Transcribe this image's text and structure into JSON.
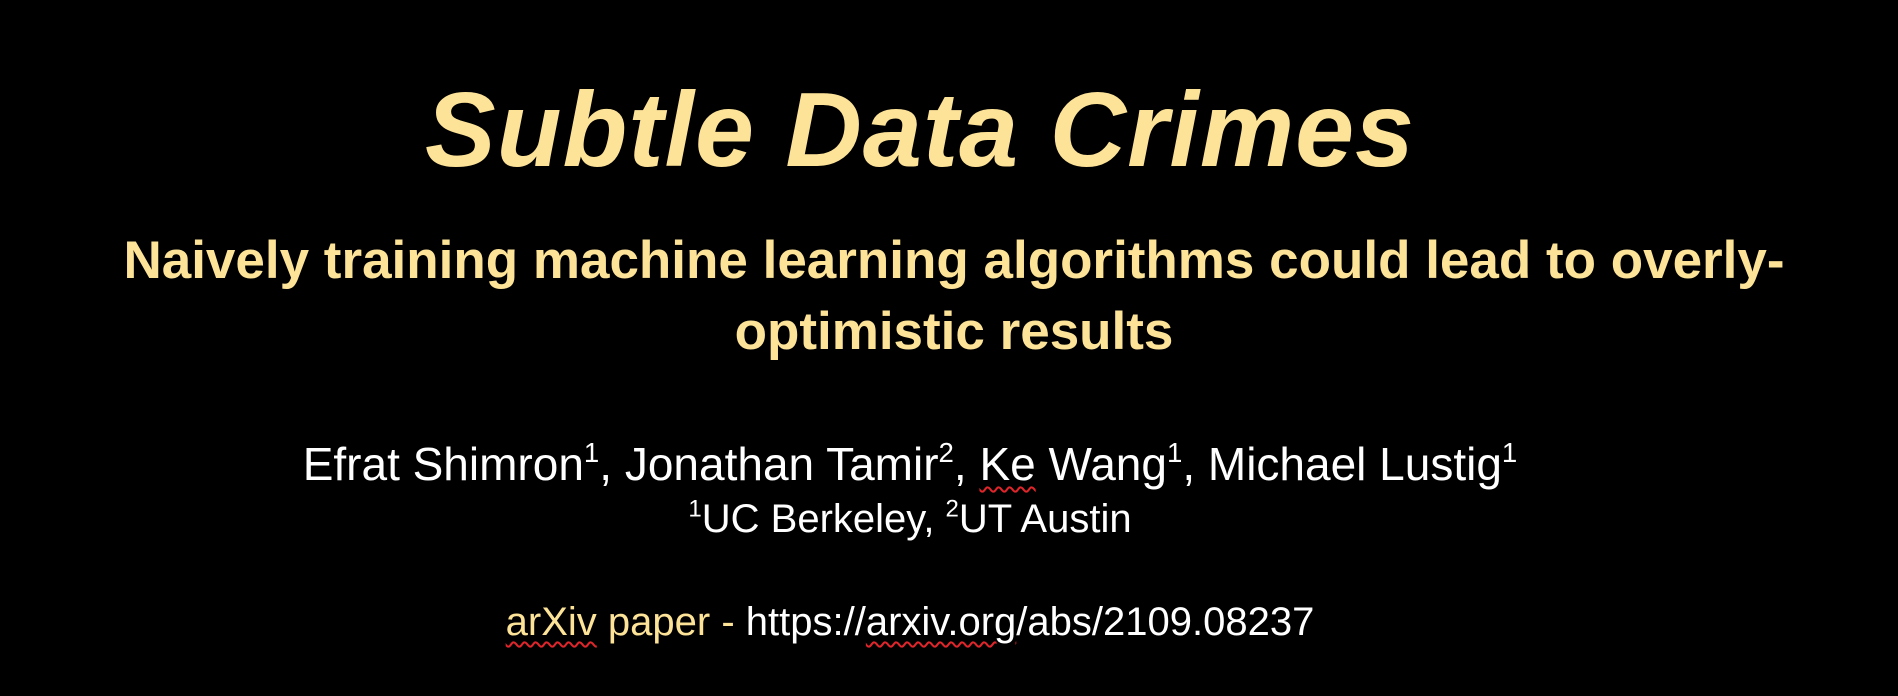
{
  "colors": {
    "background": "#000000",
    "accent_yellow": "#fde398",
    "text_white": "#ffffff",
    "spellcheck_red": "#e0262b"
  },
  "slide": {
    "title": "Subtle Data Crimes",
    "subtitle": "Naively training machine learning algorithms could lead to overly-optimistic results",
    "authors": [
      {
        "name": "Efrat Shimron",
        "sup": "1",
        "sep": ", "
      },
      {
        "name_pre": "",
        "name": "Jonathan Tamir",
        "sup": "2",
        "sep": ", "
      },
      {
        "name_ke": "Ke",
        "name_rest": " Wang",
        "sup": "1",
        "sep": ", "
      },
      {
        "name": "Michael Lustig",
        "sup": "1",
        "sep": ""
      }
    ],
    "affiliations": [
      {
        "sup": "1",
        "name": "UC Berkeley",
        "sep": ", "
      },
      {
        "sup": "2",
        "name": "UT Austin",
        "sep": ""
      }
    ],
    "link": {
      "label_word": "arXiv",
      "label_rest": " paper - ",
      "url_pre": "https://",
      "url_domain": "arxiv.org",
      "url_post": "/abs/2109.08237"
    }
  }
}
